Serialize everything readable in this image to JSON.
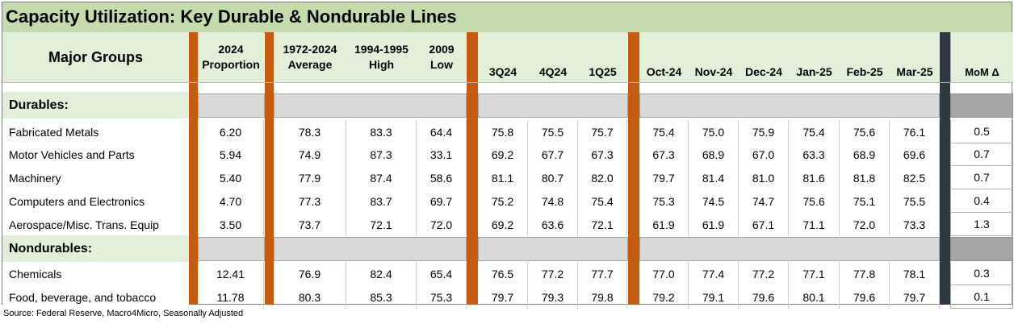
{
  "title": "Capacity Utilization: Key Durable & Nondurable Lines",
  "header": {
    "major_groups": "Major Groups",
    "columns": [
      [
        "2024",
        "Proportion"
      ],
      [
        "1972-2024",
        "Average"
      ],
      [
        "1994-1995",
        "High"
      ],
      [
        "2009",
        "Low"
      ],
      [
        "",
        "3Q24"
      ],
      [
        "",
        "4Q24"
      ],
      [
        "",
        "1Q25"
      ],
      [
        "",
        "Oct-24"
      ],
      [
        "",
        "Nov-24"
      ],
      [
        "",
        "Dec-24"
      ],
      [
        "",
        "Jan-25"
      ],
      [
        "",
        "Feb-25"
      ],
      [
        "",
        "Mar-25"
      ],
      [
        "",
        "MoM Δ"
      ]
    ]
  },
  "sections": [
    {
      "label": "Durables:",
      "rows": [
        {
          "name": "Fabricated Metals",
          "values": [
            "6.20",
            "78.3",
            "83.3",
            "64.4",
            "75.8",
            "75.5",
            "75.7",
            "75.4",
            "75.0",
            "75.9",
            "75.4",
            "75.6",
            "76.1",
            "0.5"
          ]
        },
        {
          "name": "Motor Vehicles and Parts",
          "values": [
            "5.94",
            "74.9",
            "87.3",
            "33.1",
            "69.2",
            "67.7",
            "67.3",
            "67.3",
            "68.9",
            "67.0",
            "63.3",
            "68.9",
            "69.6",
            "0.7"
          ]
        },
        {
          "name": "Machinery",
          "values": [
            "5.40",
            "77.9",
            "87.4",
            "58.6",
            "81.1",
            "80.7",
            "82.0",
            "79.7",
            "81.4",
            "81.0",
            "81.6",
            "81.8",
            "82.5",
            "0.7"
          ]
        },
        {
          "name": "Computers and Electronics",
          "values": [
            "4.70",
            "77.3",
            "83.7",
            "69.7",
            "75.2",
            "74.8",
            "75.4",
            "75.3",
            "74.5",
            "74.7",
            "75.6",
            "75.1",
            "75.5",
            "0.4"
          ]
        },
        {
          "name": "Aerospace/Misc. Trans. Equip",
          "values": [
            "3.50",
            "73.7",
            "72.1",
            "72.0",
            "69.2",
            "63.6",
            "72.1",
            "61.9",
            "61.9",
            "67.1",
            "71.1",
            "72.0",
            "73.3",
            "1.3"
          ]
        }
      ]
    },
    {
      "label": "Nondurables:",
      "rows": [
        {
          "name": "Chemicals",
          "values": [
            "12.41",
            "76.9",
            "82.4",
            "65.4",
            "76.5",
            "77.2",
            "77.7",
            "77.0",
            "77.4",
            "77.2",
            "77.1",
            "77.8",
            "78.1",
            "0.3"
          ]
        },
        {
          "name": "Food, beverage, and tobacco",
          "values": [
            "11.78",
            "80.3",
            "85.3",
            "75.3",
            "79.7",
            "79.3",
            "79.8",
            "79.2",
            "79.1",
            "79.6",
            "80.1",
            "79.6",
            "79.7",
            "0.1"
          ]
        }
      ]
    }
  ],
  "source": "Source: Federal Reserve, Macro4Micro, Seasonally Adjusted",
  "colors": {
    "title_bg": "#c4dcab",
    "header_bg": "#e2efd9",
    "separator": "#c55a11",
    "dark_separator": "#2f3a40",
    "empty_row_gray": "#d9d9d9"
  }
}
